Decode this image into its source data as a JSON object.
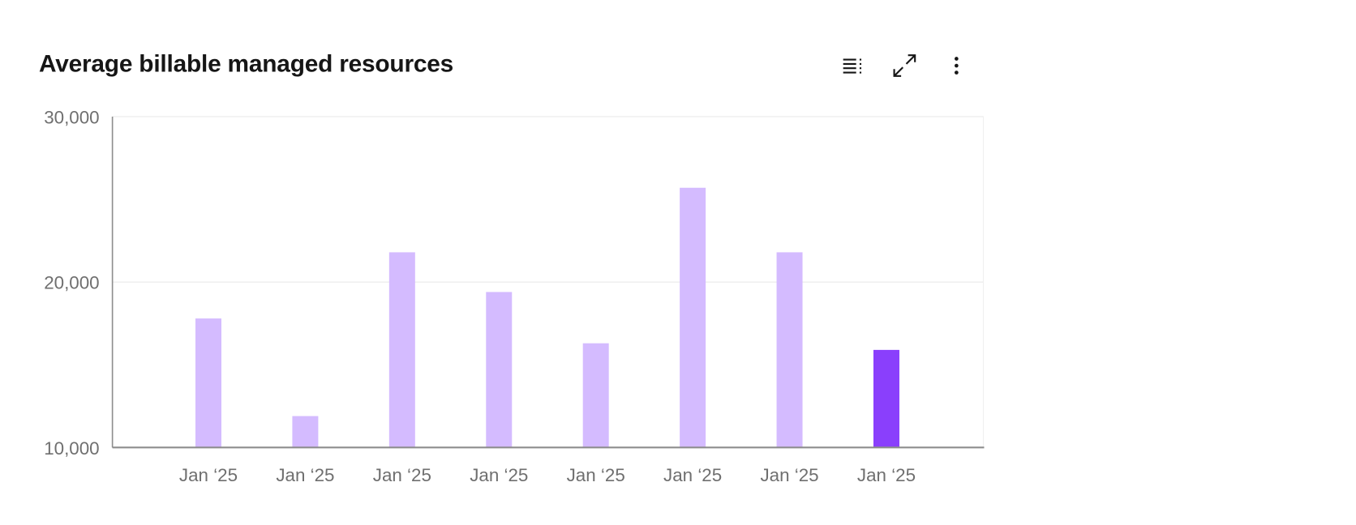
{
  "header": {
    "title": "Average billable managed resources",
    "toolbar": [
      {
        "icon": "data-table-icon",
        "label": "Show as table"
      },
      {
        "icon": "maximize-icon",
        "label": "Expand"
      },
      {
        "icon": "overflow-menu-vertical-icon",
        "label": "More options"
      }
    ]
  },
  "chart_data": {
    "type": "bar",
    "title": "Average billable managed resources",
    "categories": [
      "Jan ‘25",
      "Jan ‘25",
      "Jan ‘25",
      "Jan ‘25",
      "Jan ‘25",
      "Jan ‘25",
      "Jan ‘25",
      "Jan ‘25"
    ],
    "values": [
      17800,
      11900,
      21800,
      19400,
      16300,
      25700,
      21800,
      15900
    ],
    "ylim": [
      10000,
      30000
    ],
    "yticks": [
      10000,
      20000,
      30000
    ],
    "ytick_labels": [
      "10,000",
      "20,000",
      "30,000"
    ],
    "xlabel": "",
    "ylabel": "",
    "grid": true,
    "colors": {
      "bar": "#d4bbff",
      "highlight": "#8a3ffc",
      "axis": "#8d8d8d",
      "grid": "#f0f0f0",
      "tick_text": "#6f6f6f"
    },
    "highlight_index": 7
  }
}
